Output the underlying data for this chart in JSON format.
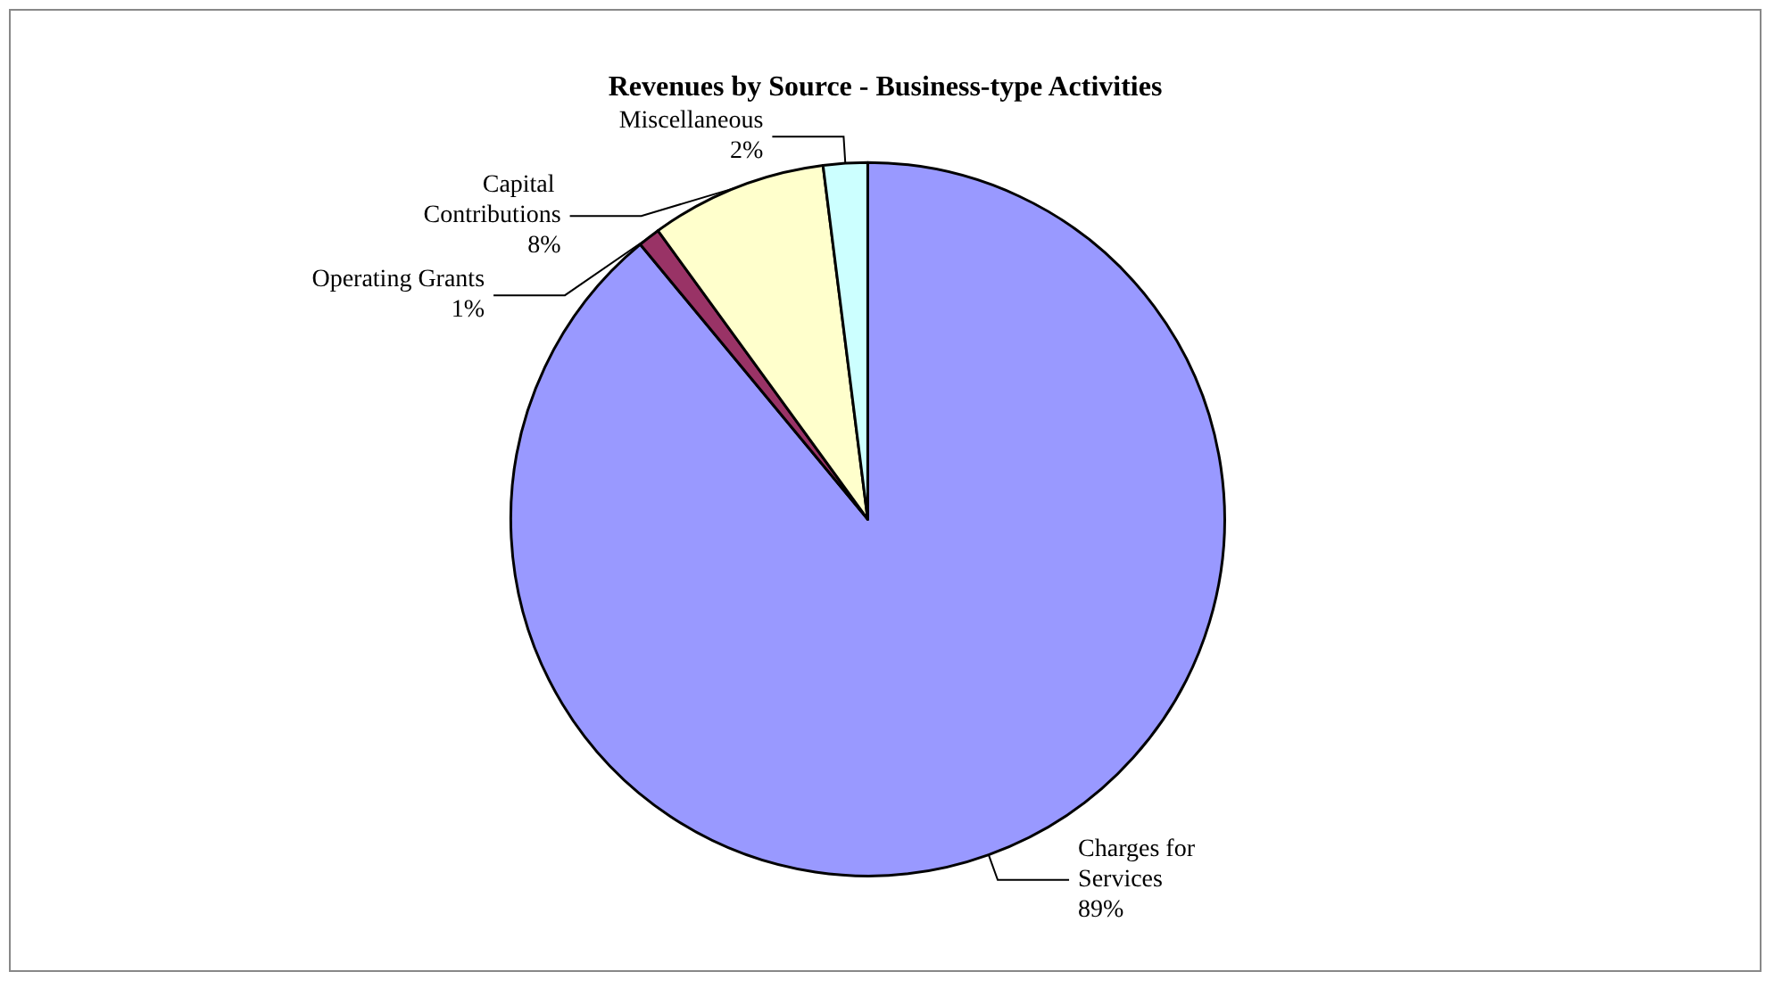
{
  "chart_data": {
    "type": "pie",
    "title": "Revenues by Source - Business-type Activities",
    "categories": [
      "Charges for Services",
      "Operating Grants",
      "Capital Contributions",
      "Miscellaneous"
    ],
    "values": [
      89,
      1,
      8,
      2
    ],
    "value_labels": [
      "89%",
      "1%",
      "8%",
      "2%"
    ],
    "colors": [
      "#9999ff",
      "#993366",
      "#ffffcc",
      "#ccffff"
    ],
    "legend": false
  }
}
